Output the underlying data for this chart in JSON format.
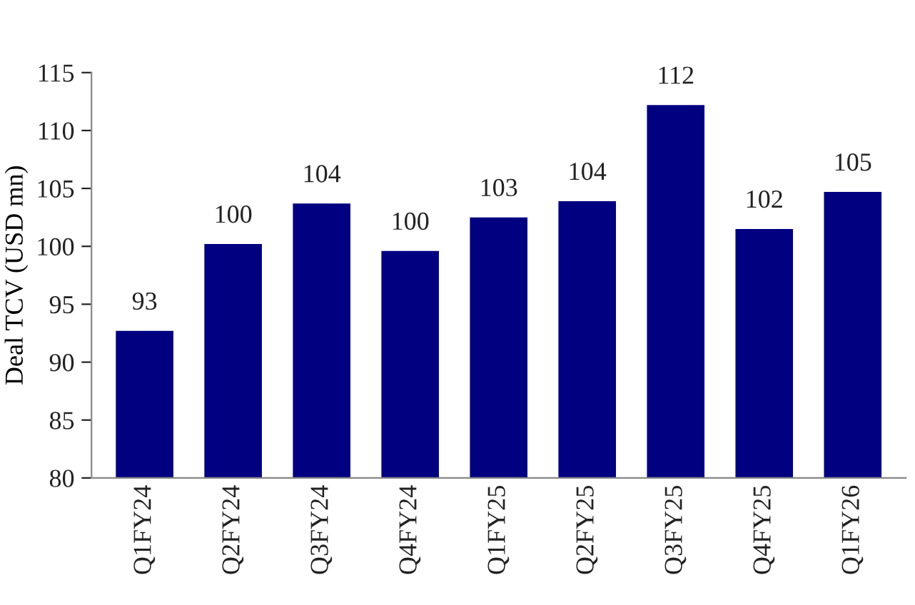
{
  "chart_data": {
    "type": "bar",
    "ylabel": "Deal TCV (USD mn)",
    "categories": [
      "Q1FY24",
      "Q2FY24",
      "Q3FY24",
      "Q4FY24",
      "Q1FY25",
      "Q2FY25",
      "Q3FY25",
      "Q4FY25",
      "Q1FY26"
    ],
    "values": [
      92.7,
      100.2,
      103.7,
      99.6,
      102.5,
      103.9,
      112.2,
      101.5,
      104.7
    ],
    "value_labels": [
      "93",
      "100",
      "104",
      "100",
      "103",
      "104",
      "112",
      "102",
      "105"
    ],
    "color": "#000080",
    "ylim": [
      80,
      115
    ],
    "yticks": [
      80,
      85,
      90,
      95,
      100,
      105,
      110,
      115
    ],
    "grid": false,
    "legend": false
  }
}
